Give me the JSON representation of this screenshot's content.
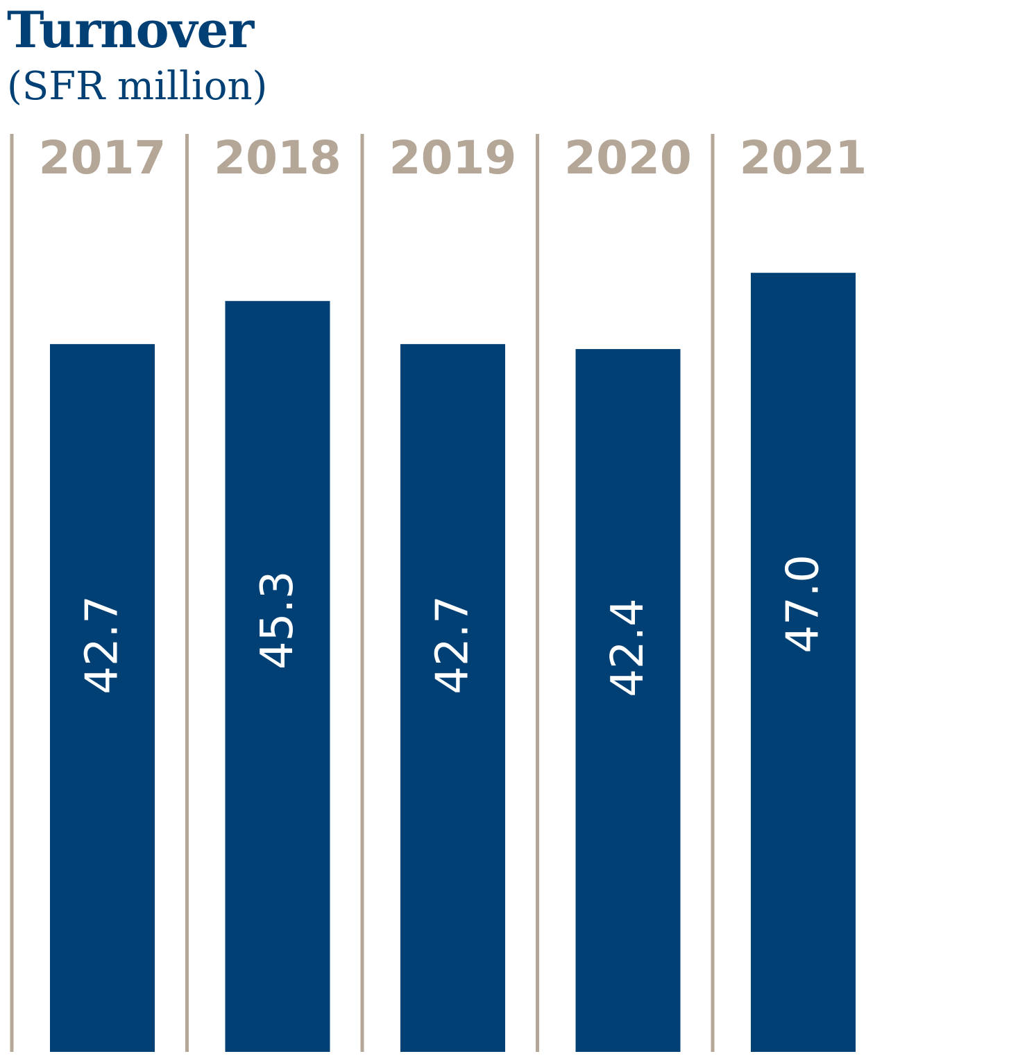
{
  "colors": {
    "bar": "#004074",
    "title": "#004074",
    "year": "#B5A798",
    "divider": "#B5A798",
    "value_label": "#ffffff",
    "background": "#ffffff"
  },
  "chart_data": {
    "type": "bar",
    "title": "Turnover",
    "subtitle": "(SFR million)",
    "categories": [
      "2017",
      "2018",
      "2019",
      "2020",
      "2021"
    ],
    "values": [
      42.7,
      45.3,
      42.7,
      42.4,
      47.0
    ],
    "value_labels": [
      "42.7",
      "45.3",
      "42.7",
      "42.4",
      "47.0"
    ],
    "ylim": [
      0,
      48
    ],
    "grid": false,
    "category_dividers": true,
    "value_label_orientation": "vertical-inside-bar"
  }
}
